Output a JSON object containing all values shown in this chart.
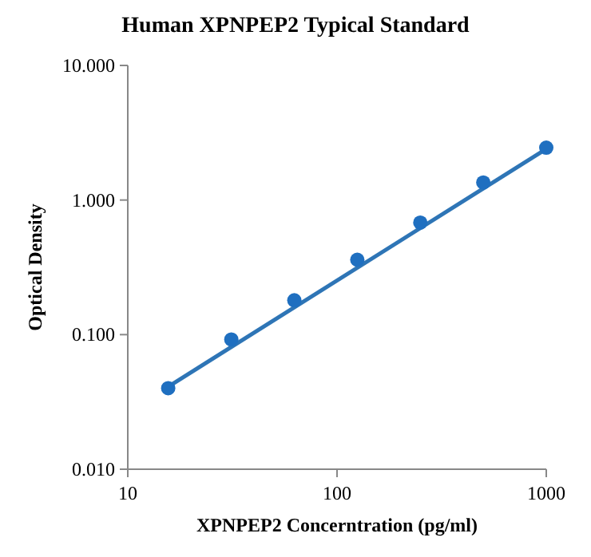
{
  "chart_data": {
    "type": "scatter",
    "title": "Human XPNPEP2 Typical Standard",
    "xlabel": "XPNPEP2 Concerntration (pg/ml)",
    "ylabel": "Optical Density",
    "log": "xy",
    "xlim": [
      10,
      1000
    ],
    "xticks": [
      10,
      100,
      1000
    ],
    "ylim": [
      0.01,
      10
    ],
    "yticks": [
      {
        "value": 0.01,
        "label": "0.010"
      },
      {
        "value": 0.1,
        "label": "0.100"
      },
      {
        "value": 1,
        "label": "1.000"
      },
      {
        "value": 10,
        "label": "10.000"
      }
    ],
    "series": [
      {
        "type": "line",
        "marker": "none",
        "color": "#2e75b6",
        "x": [
          15.6,
          1000
        ],
        "values": [
          0.041,
          2.4
        ]
      },
      {
        "marker": "circle",
        "color": "#1f6fc0",
        "x": [
          15.6,
          31.25,
          62.5,
          125,
          250,
          500,
          1000
        ],
        "values": [
          0.04,
          0.092,
          0.18,
          0.36,
          0.68,
          1.35,
          2.45
        ]
      }
    ]
  }
}
